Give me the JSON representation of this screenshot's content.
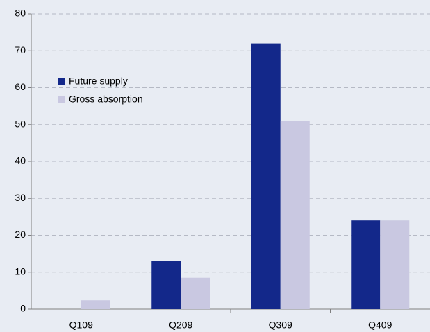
{
  "chart_data": {
    "type": "bar",
    "categories": [
      "Q109",
      "Q209",
      "Q309",
      "Q409"
    ],
    "series": [
      {
        "name": "Future supply",
        "color": "#13288a",
        "values": [
          0,
          13,
          72,
          24
        ]
      },
      {
        "name": "Gross absorption",
        "color": "#c9c8e1",
        "values": [
          2.4,
          8.5,
          51,
          24
        ]
      }
    ],
    "ylim": [
      0,
      80
    ],
    "yticks": [
      0,
      10,
      20,
      30,
      40,
      50,
      60,
      70,
      80
    ],
    "grid": true,
    "legend": "upper left"
  }
}
